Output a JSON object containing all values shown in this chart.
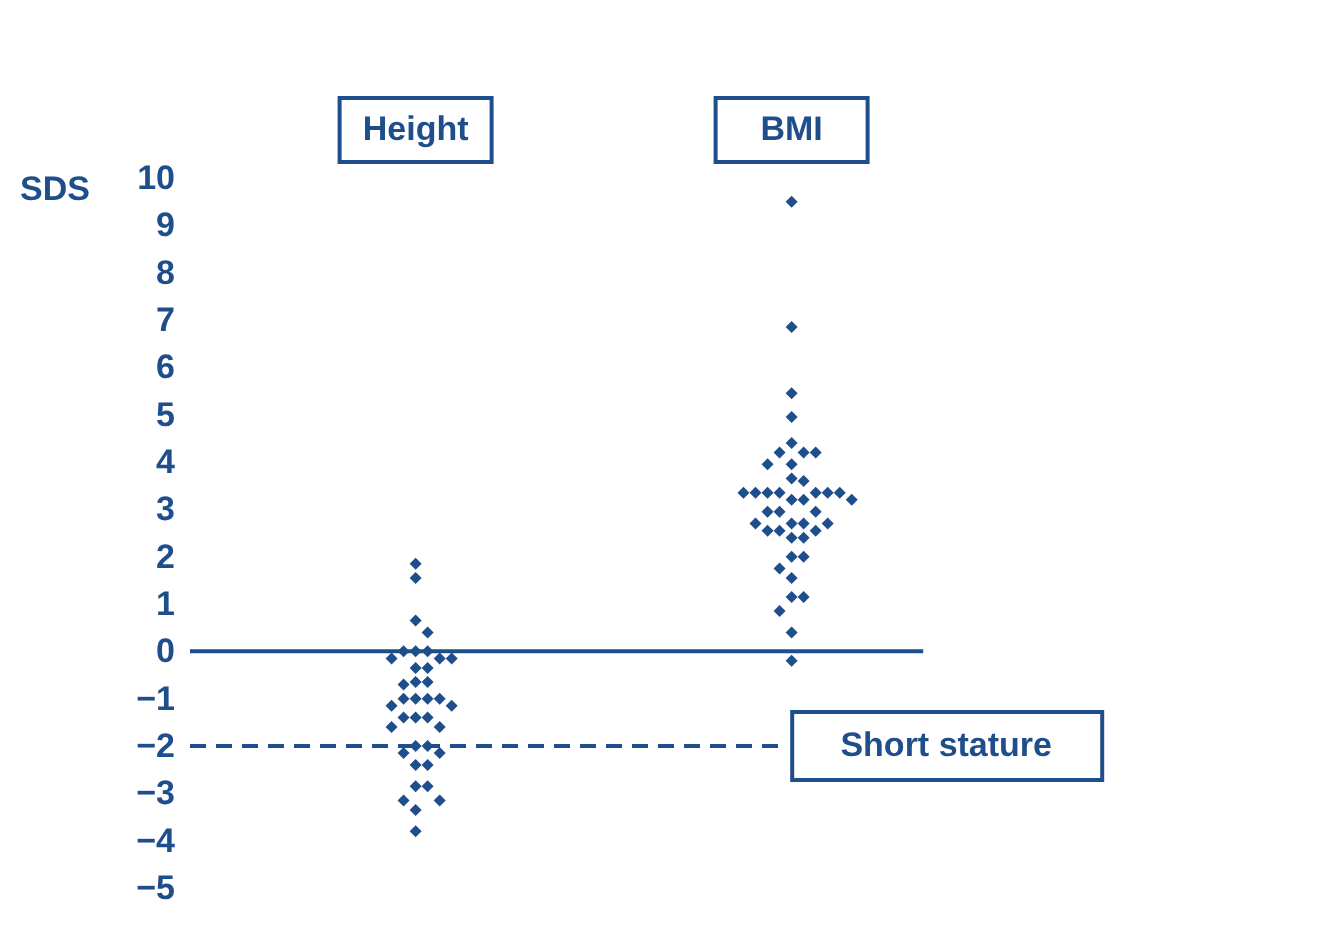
{
  "chart_data": {
    "type": "scatter",
    "ylabel": "SDS",
    "categories": [
      "Height",
      "BMI"
    ],
    "ylim": [
      -5,
      10
    ],
    "yticks": [
      -5,
      -4,
      -3,
      -2,
      -1,
      0,
      1,
      2,
      3,
      4,
      5,
      6,
      7,
      8,
      9,
      10
    ],
    "grid": false,
    "marker": "diamond",
    "tick_labels": "y",
    "series": [
      {
        "color": "#1f4e8c",
        "x": [
          "Height",
          "Height",
          "Height",
          "Height",
          "Height",
          "Height",
          "Height",
          "Height",
          "Height",
          "Height",
          "Height",
          "Height",
          "Height",
          "Height",
          "Height",
          "Height",
          "Height",
          "Height",
          "Height",
          "Height",
          "Height",
          "Height",
          "Height",
          "Height",
          "Height",
          "Height",
          "Height",
          "Height",
          "Height",
          "Height",
          "Height",
          "Height",
          "Height",
          "Height",
          "Height",
          "Height",
          "Height",
          "Height"
        ],
        "values": [
          1.85,
          1.55,
          0.65,
          0.4,
          0,
          0,
          0,
          -0.15,
          -0.15,
          -0.15,
          -0.35,
          -0.35,
          -0.65,
          -0.65,
          -0.7,
          -1,
          -1,
          -1,
          -1,
          -1.15,
          -1.15,
          -1.4,
          -1.4,
          -1.4,
          -1.6,
          -1.6,
          -2,
          -2,
          -2.15,
          -2.15,
          -2.4,
          -2.4,
          -2.85,
          -2.85,
          -3.15,
          -3.15,
          -3.35,
          -3.8
        ]
      },
      {
        "color": "#1f4e8c",
        "x": [
          "BMI",
          "BMI",
          "BMI",
          "BMI",
          "BMI",
          "BMI",
          "BMI",
          "BMI",
          "BMI",
          "BMI",
          "BMI",
          "BMI",
          "BMI",
          "BMI",
          "BMI",
          "BMI",
          "BMI",
          "BMI",
          "BMI",
          "BMI",
          "BMI",
          "BMI",
          "BMI",
          "BMI",
          "BMI",
          "BMI",
          "BMI",
          "BMI",
          "BMI",
          "BMI",
          "BMI",
          "BMI",
          "BMI",
          "BMI",
          "BMI",
          "BMI",
          "BMI",
          "BMI",
          "BMI",
          "BMI",
          "BMI",
          "BMI",
          "BMI"
        ],
        "values": [
          9.5,
          6.85,
          5.45,
          4.95,
          4.4,
          4.2,
          4.2,
          4.2,
          3.95,
          3.95,
          3.65,
          3.6,
          3.35,
          3.35,
          3.35,
          3.35,
          3.35,
          3.35,
          3.35,
          3.2,
          3.2,
          3.2,
          2.95,
          2.95,
          2.95,
          2.7,
          2.7,
          2.7,
          2.7,
          2.55,
          2.55,
          2.55,
          2.4,
          2.4,
          2,
          2,
          1.75,
          1.55,
          1.15,
          1.15,
          0.85,
          0.4,
          -0.2
        ]
      }
    ],
    "ref_lines": [
      {
        "axis": "y",
        "value": 0,
        "line_style": "solid",
        "color": "#1f4e8c"
      },
      {
        "axis": "y",
        "value": -2,
        "label": "Short stature",
        "line_style": "dashed",
        "color": "#1f4e8c"
      }
    ]
  }
}
